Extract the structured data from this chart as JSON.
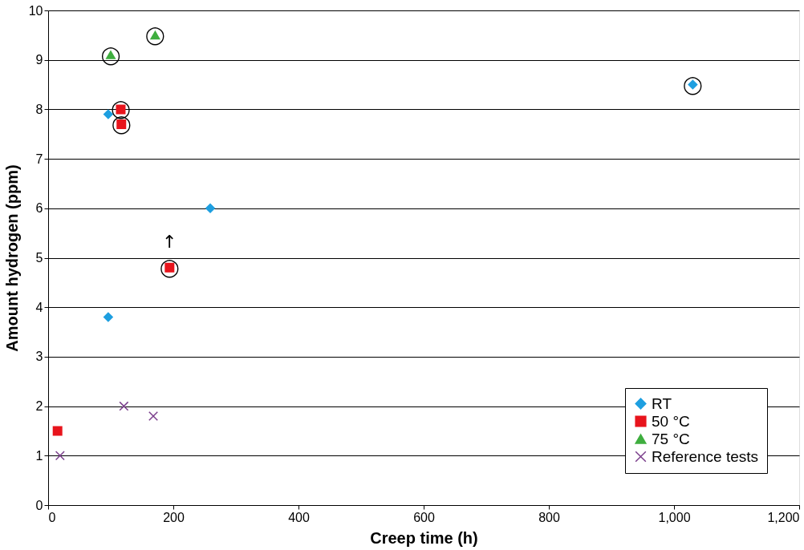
{
  "chart_data": {
    "type": "scatter",
    "xlabel": "Creep time (h)",
    "ylabel": "Amount hydrogen (ppm)",
    "xlim": [
      0,
      1200
    ],
    "xticks": [
      0,
      200,
      400,
      600,
      800,
      {
        "value": 1000,
        "label": "1,000"
      },
      {
        "value": 1200,
        "label": "1,200"
      }
    ],
    "ylim": [
      0,
      10
    ],
    "yticks": [
      0,
      1,
      2,
      3,
      4,
      5,
      6,
      7,
      8,
      9,
      10
    ],
    "grid": "y",
    "legend": "bottom right",
    "series": [
      {
        "name": "RT",
        "color": "#1e9fe0",
        "marker": "diamond",
        "x": [
          96,
          96,
          259,
          1030
        ],
        "values": [
          3.8,
          7.9,
          6.0,
          8.5
        ]
      },
      {
        "name": "50 °C",
        "color": "#e8141c",
        "marker": "square",
        "x": [
          15,
          116,
          117,
          194
        ],
        "values": [
          1.5,
          8.0,
          7.7,
          4.8
        ]
      },
      {
        "name": "75 °C",
        "color": "#3fae3f",
        "marker": "triangle",
        "x": [
          100,
          171
        ],
        "values": [
          9.1,
          9.5
        ]
      },
      {
        "name": "Reference tests",
        "color": "#7b3f8c",
        "marker": "cross",
        "x": [
          19,
          121,
          168
        ],
        "values": [
          1.0,
          2.0,
          1.8
        ]
      }
    ],
    "annotations": [
      {
        "text": "◯",
        "x": 1030,
        "y": 8.5
      },
      {
        "text": "◯",
        "x": 116,
        "y": 8.0
      },
      {
        "text": "◯",
        "x": 117,
        "y": 7.7
      },
      {
        "text": "◯",
        "x": 194,
        "y": 4.8
      },
      {
        "text": "↑",
        "x": 194,
        "y": 4.8
      },
      {
        "text": "◯",
        "x": 100,
        "y": 9.1
      },
      {
        "text": "◯",
        "x": 171,
        "y": 9.5
      }
    ]
  }
}
